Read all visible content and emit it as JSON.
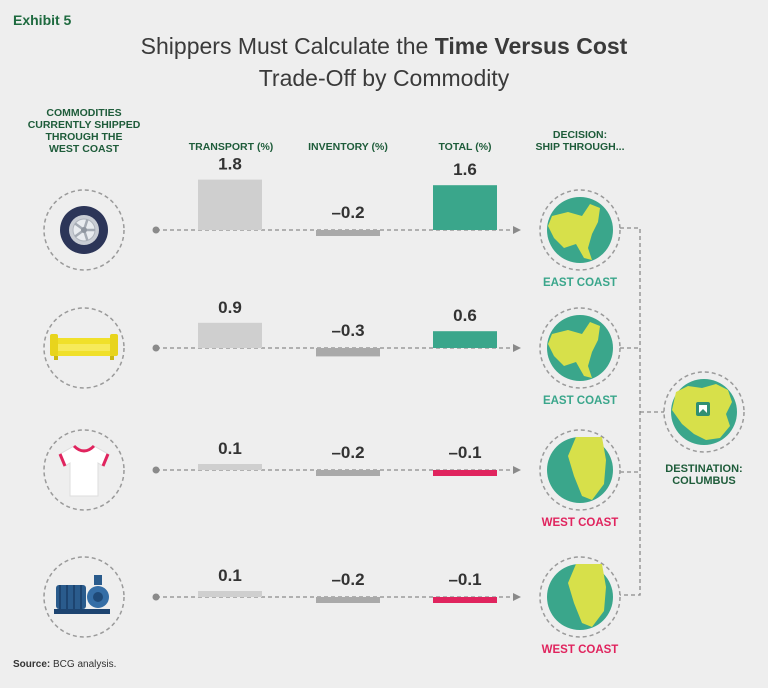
{
  "exhibit": "Exhibit 5",
  "title": {
    "line1_regular": "Shippers Must Calculate the ",
    "line1_bold": "Time Versus Cost",
    "line2": "Trade-Off by Commodity"
  },
  "headers": {
    "commodities": [
      "COMMODITIES",
      "CURRENTLY SHIPPED",
      "THROUGH THE",
      "WEST COAST"
    ],
    "transport": "TRANSPORT (%)",
    "inventory": "INVENTORY (%)",
    "total": "TOTAL (%)",
    "decision": [
      "DECISION:",
      "SHIP THROUGH..."
    ]
  },
  "rows": [
    {
      "icon": "tire-icon",
      "transport": 1.8,
      "transport_label": "1.8",
      "inventory": -0.2,
      "inventory_label": "–0.2",
      "total": 1.6,
      "total_label": "1.6",
      "decision": "EAST COAST",
      "decision_map": "east-coast-map-icon"
    },
    {
      "icon": "sofa-icon",
      "transport": 0.9,
      "transport_label": "0.9",
      "inventory": -0.3,
      "inventory_label": "–0.3",
      "total": 0.6,
      "total_label": "0.6",
      "decision": "EAST COAST",
      "decision_map": "east-coast-map-icon"
    },
    {
      "icon": "tshirt-icon",
      "transport": 0.1,
      "transport_label": "0.1",
      "inventory": -0.2,
      "inventory_label": "–0.2",
      "total": -0.1,
      "total_label": "–0.1",
      "decision": "WEST COAST",
      "decision_map": "west-coast-map-icon"
    },
    {
      "icon": "pump-icon",
      "transport": 0.1,
      "transport_label": "0.1",
      "inventory": -0.2,
      "inventory_label": "–0.2",
      "total": -0.1,
      "total_label": "–0.1",
      "decision": "WEST COAST",
      "decision_map": "west-coast-map-icon"
    }
  ],
  "destination": {
    "label": [
      "DESTINATION:",
      "COLUMBUS"
    ],
    "icon": "columbus-map-icon"
  },
  "source": {
    "bold": "Source:",
    "text": " BCG analysis."
  },
  "colors": {
    "green": "#3aa68b",
    "positive_total": "#3aa68b",
    "negative_total": "#e0245e",
    "bar_light": "#cfcfcf",
    "bar_dark": "#a9a9a9",
    "map_land": "#d7e04a",
    "map_sea": "#3aa68b",
    "dark_text": "#333333",
    "header_green": "#1e5c3a"
  }
}
